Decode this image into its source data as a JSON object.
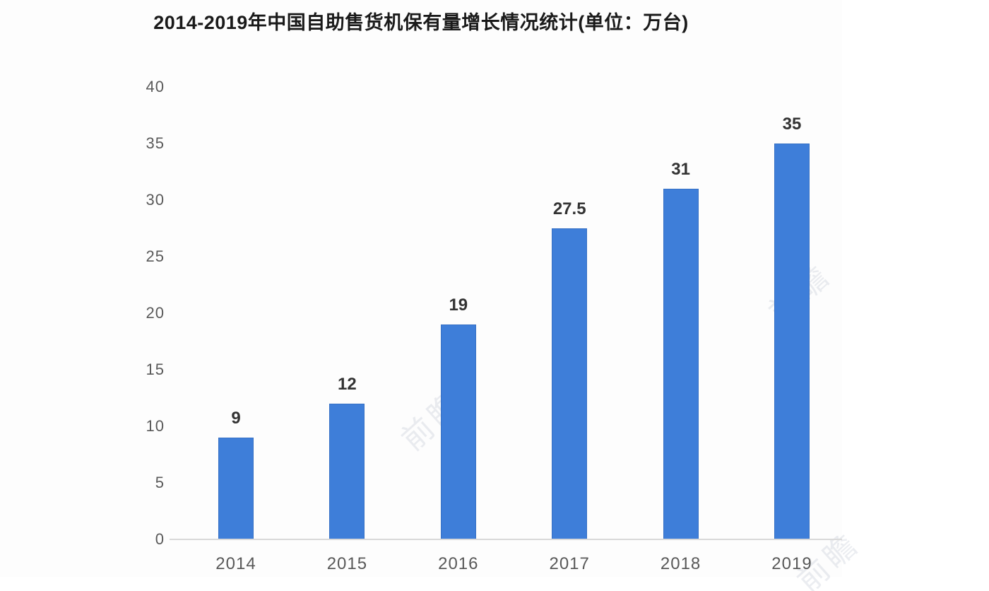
{
  "chart_data": {
    "type": "bar",
    "title": "2014-2019年中国自助售货机保有量增长情况统计(单位：万台)",
    "categories": [
      "2014",
      "2015",
      "2016",
      "2017",
      "2018",
      "2019"
    ],
    "values": [
      9,
      12,
      19,
      27.5,
      31,
      35
    ],
    "value_labels": [
      "9",
      "12",
      "19",
      "27.5",
      "31",
      "35"
    ],
    "xlabel": "",
    "ylabel": "",
    "ylim": [
      0,
      40
    ],
    "yticks": [
      0,
      5,
      10,
      15,
      20,
      25,
      30,
      35,
      40
    ],
    "grid": false,
    "legend": "none",
    "bar_color": "#3E7ED9",
    "axis_line_color": "#d9d9d9",
    "tick_label_color": "#595959",
    "value_label_color": "#333333",
    "title_color": "#1a1a1a"
  },
  "watermark": {
    "text": "前瞻",
    "color": "#9aa3b8"
  }
}
